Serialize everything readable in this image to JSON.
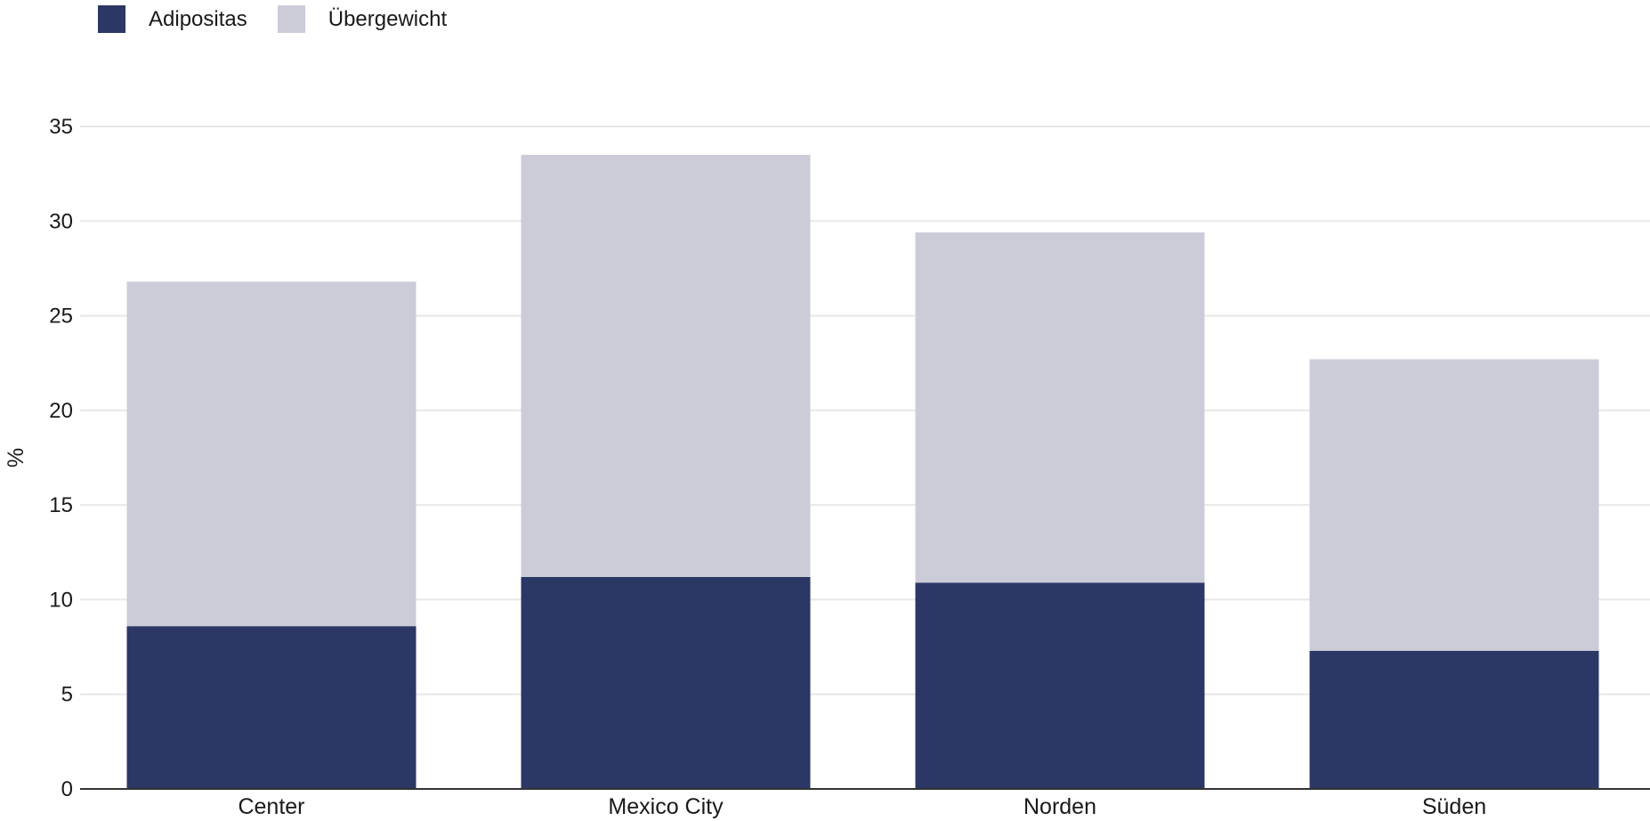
{
  "chart_data": {
    "type": "bar",
    "stacked": true,
    "categories": [
      "Center",
      "Mexico City",
      "Norden",
      "Süden"
    ],
    "series": [
      {
        "name": "Adipositas",
        "color": "#2b3765",
        "values": [
          8.6,
          11.2,
          10.9,
          7.3
        ]
      },
      {
        "name": "Übergewicht",
        "color": "#cbccd8",
        "values": [
          18.2,
          22.3,
          18.5,
          15.4
        ]
      }
    ],
    "ylabel": "%",
    "xlabel": "",
    "ylim": [
      0,
      35
    ],
    "yticks": [
      0,
      5,
      10,
      15,
      20,
      25,
      30,
      35
    ],
    "grid": true,
    "legend_position": "top-left"
  }
}
